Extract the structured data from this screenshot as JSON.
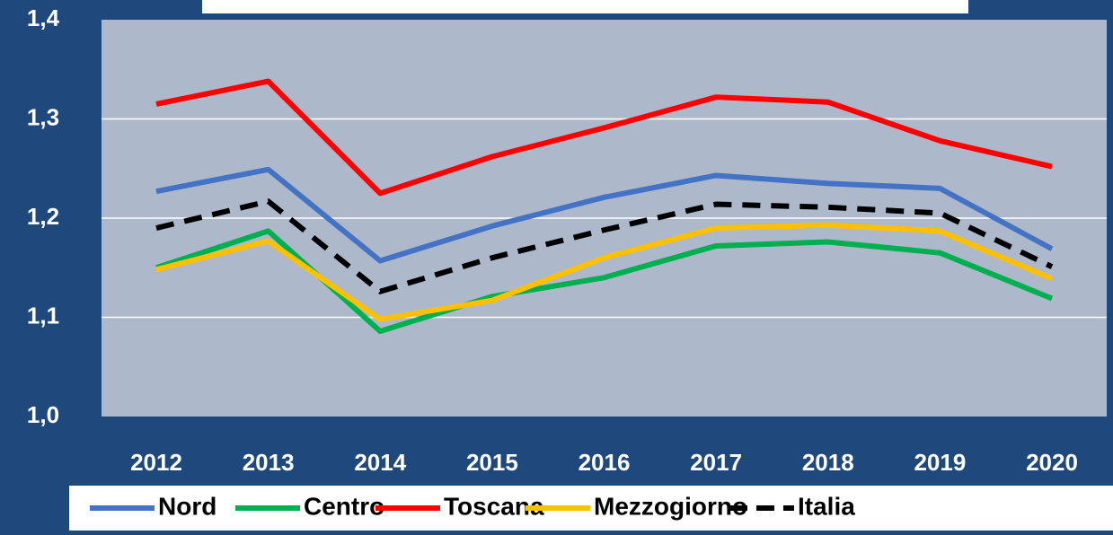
{
  "chart_data": {
    "type": "line",
    "categories": [
      "2012",
      "2013",
      "2014",
      "2015",
      "2016",
      "2017",
      "2018",
      "2019",
      "2020"
    ],
    "series": [
      {
        "name": "Nord",
        "color": "#4472c4",
        "values": [
          1.227,
          1.249,
          1.157,
          1.192,
          1.221,
          1.243,
          1.235,
          1.23,
          1.169
        ]
      },
      {
        "name": "Centro",
        "color": "#00b050",
        "values": [
          1.15,
          1.187,
          1.086,
          1.121,
          1.14,
          1.172,
          1.176,
          1.165,
          1.119
        ]
      },
      {
        "name": "Toscana",
        "color": "#ff0000",
        "values": [
          1.315,
          1.338,
          1.225,
          1.262,
          1.291,
          1.322,
          1.317,
          1.278,
          1.252
        ]
      },
      {
        "name": "Mezzogiorno",
        "color": "#ffc000",
        "values": [
          1.148,
          1.177,
          1.098,
          1.117,
          1.16,
          1.19,
          1.193,
          1.187,
          1.139
        ]
      },
      {
        "name": "Italia",
        "color": "#000000",
        "dashed": true,
        "values": [
          1.19,
          1.217,
          1.126,
          1.16,
          1.188,
          1.214,
          1.211,
          1.205,
          1.151
        ]
      }
    ],
    "ylim": [
      1.0,
      1.4
    ],
    "yticks": [
      {
        "value": 1.0,
        "label": "1,0"
      },
      {
        "value": 1.1,
        "label": "1,1"
      },
      {
        "value": 1.2,
        "label": "1,2"
      },
      {
        "value": 1.3,
        "label": "1,3"
      },
      {
        "value": 1.4,
        "label": "1,4"
      }
    ],
    "grid": true,
    "legend": "bottom"
  }
}
